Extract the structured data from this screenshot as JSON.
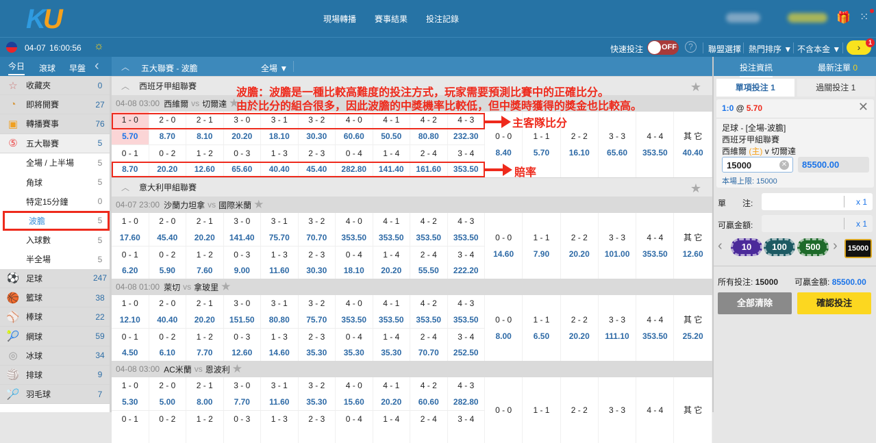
{
  "header": {
    "logo": "KU",
    "nav": [
      "現場轉播",
      "賽事結果",
      "投注記錄"
    ]
  },
  "subbar": {
    "date": "04-07",
    "time": "16:00:56",
    "quick_bet": "快速投注",
    "toggle": "OFF",
    "help": "?",
    "league_select": "聯盟選擇",
    "sort": "熱門排序 ▼",
    "stake_mode": "不含本金 ▼",
    "notif_count": "1"
  },
  "sidebar": {
    "tabs": [
      "今日",
      "滾球",
      "早盤"
    ],
    "collapse": "‹",
    "items": [
      {
        "icon": "☆",
        "label": "收藏夾",
        "count": "0",
        "style": "gray"
      },
      {
        "icon": "◔",
        "label": "即將開賽",
        "count": "27",
        "style": "gray"
      },
      {
        "icon": "▣",
        "label": "轉播賽事",
        "count": "76",
        "style": "gray"
      },
      {
        "icon": "⑤",
        "label": "五大聯賽",
        "count": "5",
        "style": "light"
      },
      {
        "icon": "",
        "label": "全場 / 上半場",
        "count": "5",
        "style": "white"
      },
      {
        "icon": "",
        "label": "角球",
        "count": "5",
        "style": "white"
      },
      {
        "icon": "",
        "label": "特定15分鐘",
        "count": "0",
        "style": "white"
      },
      {
        "icon": "",
        "label": "波膽",
        "count": "5",
        "style": "white sel"
      },
      {
        "icon": "",
        "label": "入球數",
        "count": "5",
        "style": "white"
      },
      {
        "icon": "",
        "label": "半全場",
        "count": "5",
        "style": "white"
      },
      {
        "icon": "⚽",
        "label": "足球",
        "count": "247",
        "style": "gray"
      },
      {
        "icon": "🏀",
        "label": "籃球",
        "count": "38",
        "style": "gray"
      },
      {
        "icon": "⚾",
        "label": "棒球",
        "count": "22",
        "style": "gray"
      },
      {
        "icon": "🎾",
        "label": "網球",
        "count": "59",
        "style": "gray"
      },
      {
        "icon": "◎",
        "label": "冰球",
        "count": "34",
        "style": "gray"
      },
      {
        "icon": "🏐",
        "label": "排球",
        "count": "9",
        "style": "gray"
      },
      {
        "icon": "🏸",
        "label": "羽毛球",
        "count": "7",
        "style": "gray"
      }
    ]
  },
  "main": {
    "title": "五大聯賽 - 波膽",
    "period": "全場 ▼",
    "home_scores": [
      "1 - 0",
      "2 - 0",
      "2 - 1",
      "3 - 0",
      "3 - 1",
      "3 - 2",
      "4 - 0",
      "4 - 1",
      "4 - 2",
      "4 - 3"
    ],
    "away_scores": [
      "0 - 1",
      "0 - 2",
      "1 - 2",
      "0 - 3",
      "1 - 3",
      "2 - 3",
      "0 - 4",
      "1 - 4",
      "2 - 4",
      "3 - 4"
    ],
    "draw_scores": [
      "0 - 0",
      "1 - 1",
      "2 - 2",
      "3 - 3",
      "4 - 4",
      "其 它"
    ],
    "leagues": [
      {
        "name": "西班牙甲組聯賽",
        "matches": [
          {
            "time": "04-08 03:00",
            "home": "西維爾",
            "vs": "vs",
            "away": "切爾達",
            "home_odds": [
              "5.70",
              "8.70",
              "8.10",
              "20.20",
              "18.10",
              "30.30",
              "60.60",
              "50.50",
              "80.80",
              "232.30"
            ],
            "away_odds": [
              "8.70",
              "20.20",
              "12.60",
              "65.60",
              "40.40",
              "45.40",
              "282.80",
              "141.40",
              "161.60",
              "353.50"
            ],
            "draw_odds": [
              "8.40",
              "5.70",
              "16.10",
              "65.60",
              "353.50",
              "40.40"
            ],
            "selected": 0
          }
        ]
      },
      {
        "name": "意大利甲組聯賽",
        "matches": [
          {
            "time": "04-07 23:00",
            "home": "沙蘭力坦拿",
            "vs": "vs",
            "away": "國際米蘭",
            "home_odds": [
              "17.60",
              "45.40",
              "20.20",
              "141.40",
              "75.70",
              "70.70",
              "353.50",
              "353.50",
              "353.50",
              "353.50"
            ],
            "away_odds": [
              "6.20",
              "5.90",
              "7.60",
              "9.00",
              "11.60",
              "30.30",
              "18.10",
              "20.20",
              "55.50",
              "222.20"
            ],
            "draw_odds": [
              "14.60",
              "7.90",
              "20.20",
              "101.00",
              "353.50",
              "12.60"
            ]
          },
          {
            "time": "04-08 01:00",
            "home": "萊切",
            "vs": "vs",
            "away": "拿玻里",
            "home_odds": [
              "12.10",
              "40.40",
              "20.20",
              "151.50",
              "80.80",
              "75.70",
              "353.50",
              "353.50",
              "353.50",
              "353.50"
            ],
            "away_odds": [
              "4.50",
              "6.10",
              "7.70",
              "12.60",
              "14.60",
              "35.30",
              "35.30",
              "35.30",
              "70.70",
              "252.50"
            ],
            "draw_odds": [
              "8.00",
              "6.50",
              "20.20",
              "111.10",
              "353.50",
              "25.20"
            ]
          },
          {
            "time": "04-08 03:00",
            "home": "AC米蘭",
            "vs": "vs",
            "away": "恩波利",
            "home_odds": [
              "5.30",
              "5.00",
              "8.00",
              "7.70",
              "11.60",
              "35.30",
              "15.60",
              "20.20",
              "60.60",
              "282.80"
            ],
            "away_odds": [],
            "draw_odds": []
          }
        ]
      }
    ]
  },
  "annotations": {
    "line1": "波膽：波膽是一種比較高難度的投注方式，玩家需要預測比賽中的正確比分。",
    "line2": "由於比分的組合很多，因此波膽的中獎機率比較低，但中獎時獲得的獎金也比較高。",
    "scores_label": "主客隊比分",
    "odds_label": "賠率"
  },
  "betslip": {
    "tab_info": "投注資訊",
    "tab_recent": "最新注單",
    "recent_count": "0",
    "single": "單項投注 1",
    "parlay": "過關投注 1",
    "selection": "1:0",
    "at": "@",
    "odds": "5.70",
    "market": "足球 - [全場-波膽]",
    "league": "西班牙甲組聯賽",
    "home": "西維爾",
    "home_tag": "(主)",
    "v": "v",
    "away": "切爾達",
    "stake": "15000",
    "payout": "85500.00",
    "limit_label": "本場上限:",
    "limit": "15000",
    "single_label": "單　　注:",
    "single_mult": "x 1",
    "win_label": "可贏金額:",
    "win_mult": "x 1",
    "chips": [
      "10",
      "100",
      "500"
    ],
    "chip_selected": "15000",
    "total_label": "所有投注:",
    "total": "15000",
    "total_win_label": "可贏金額:",
    "total_win": "85500.00",
    "clear": "全部清除",
    "confirm": "確認投注"
  },
  "colors": {
    "header": "#2673a5",
    "accent": "#3d89bb",
    "odds": "#2e6aa6",
    "annotation": "#ee2a1c",
    "confirm": "#fcd720"
  }
}
